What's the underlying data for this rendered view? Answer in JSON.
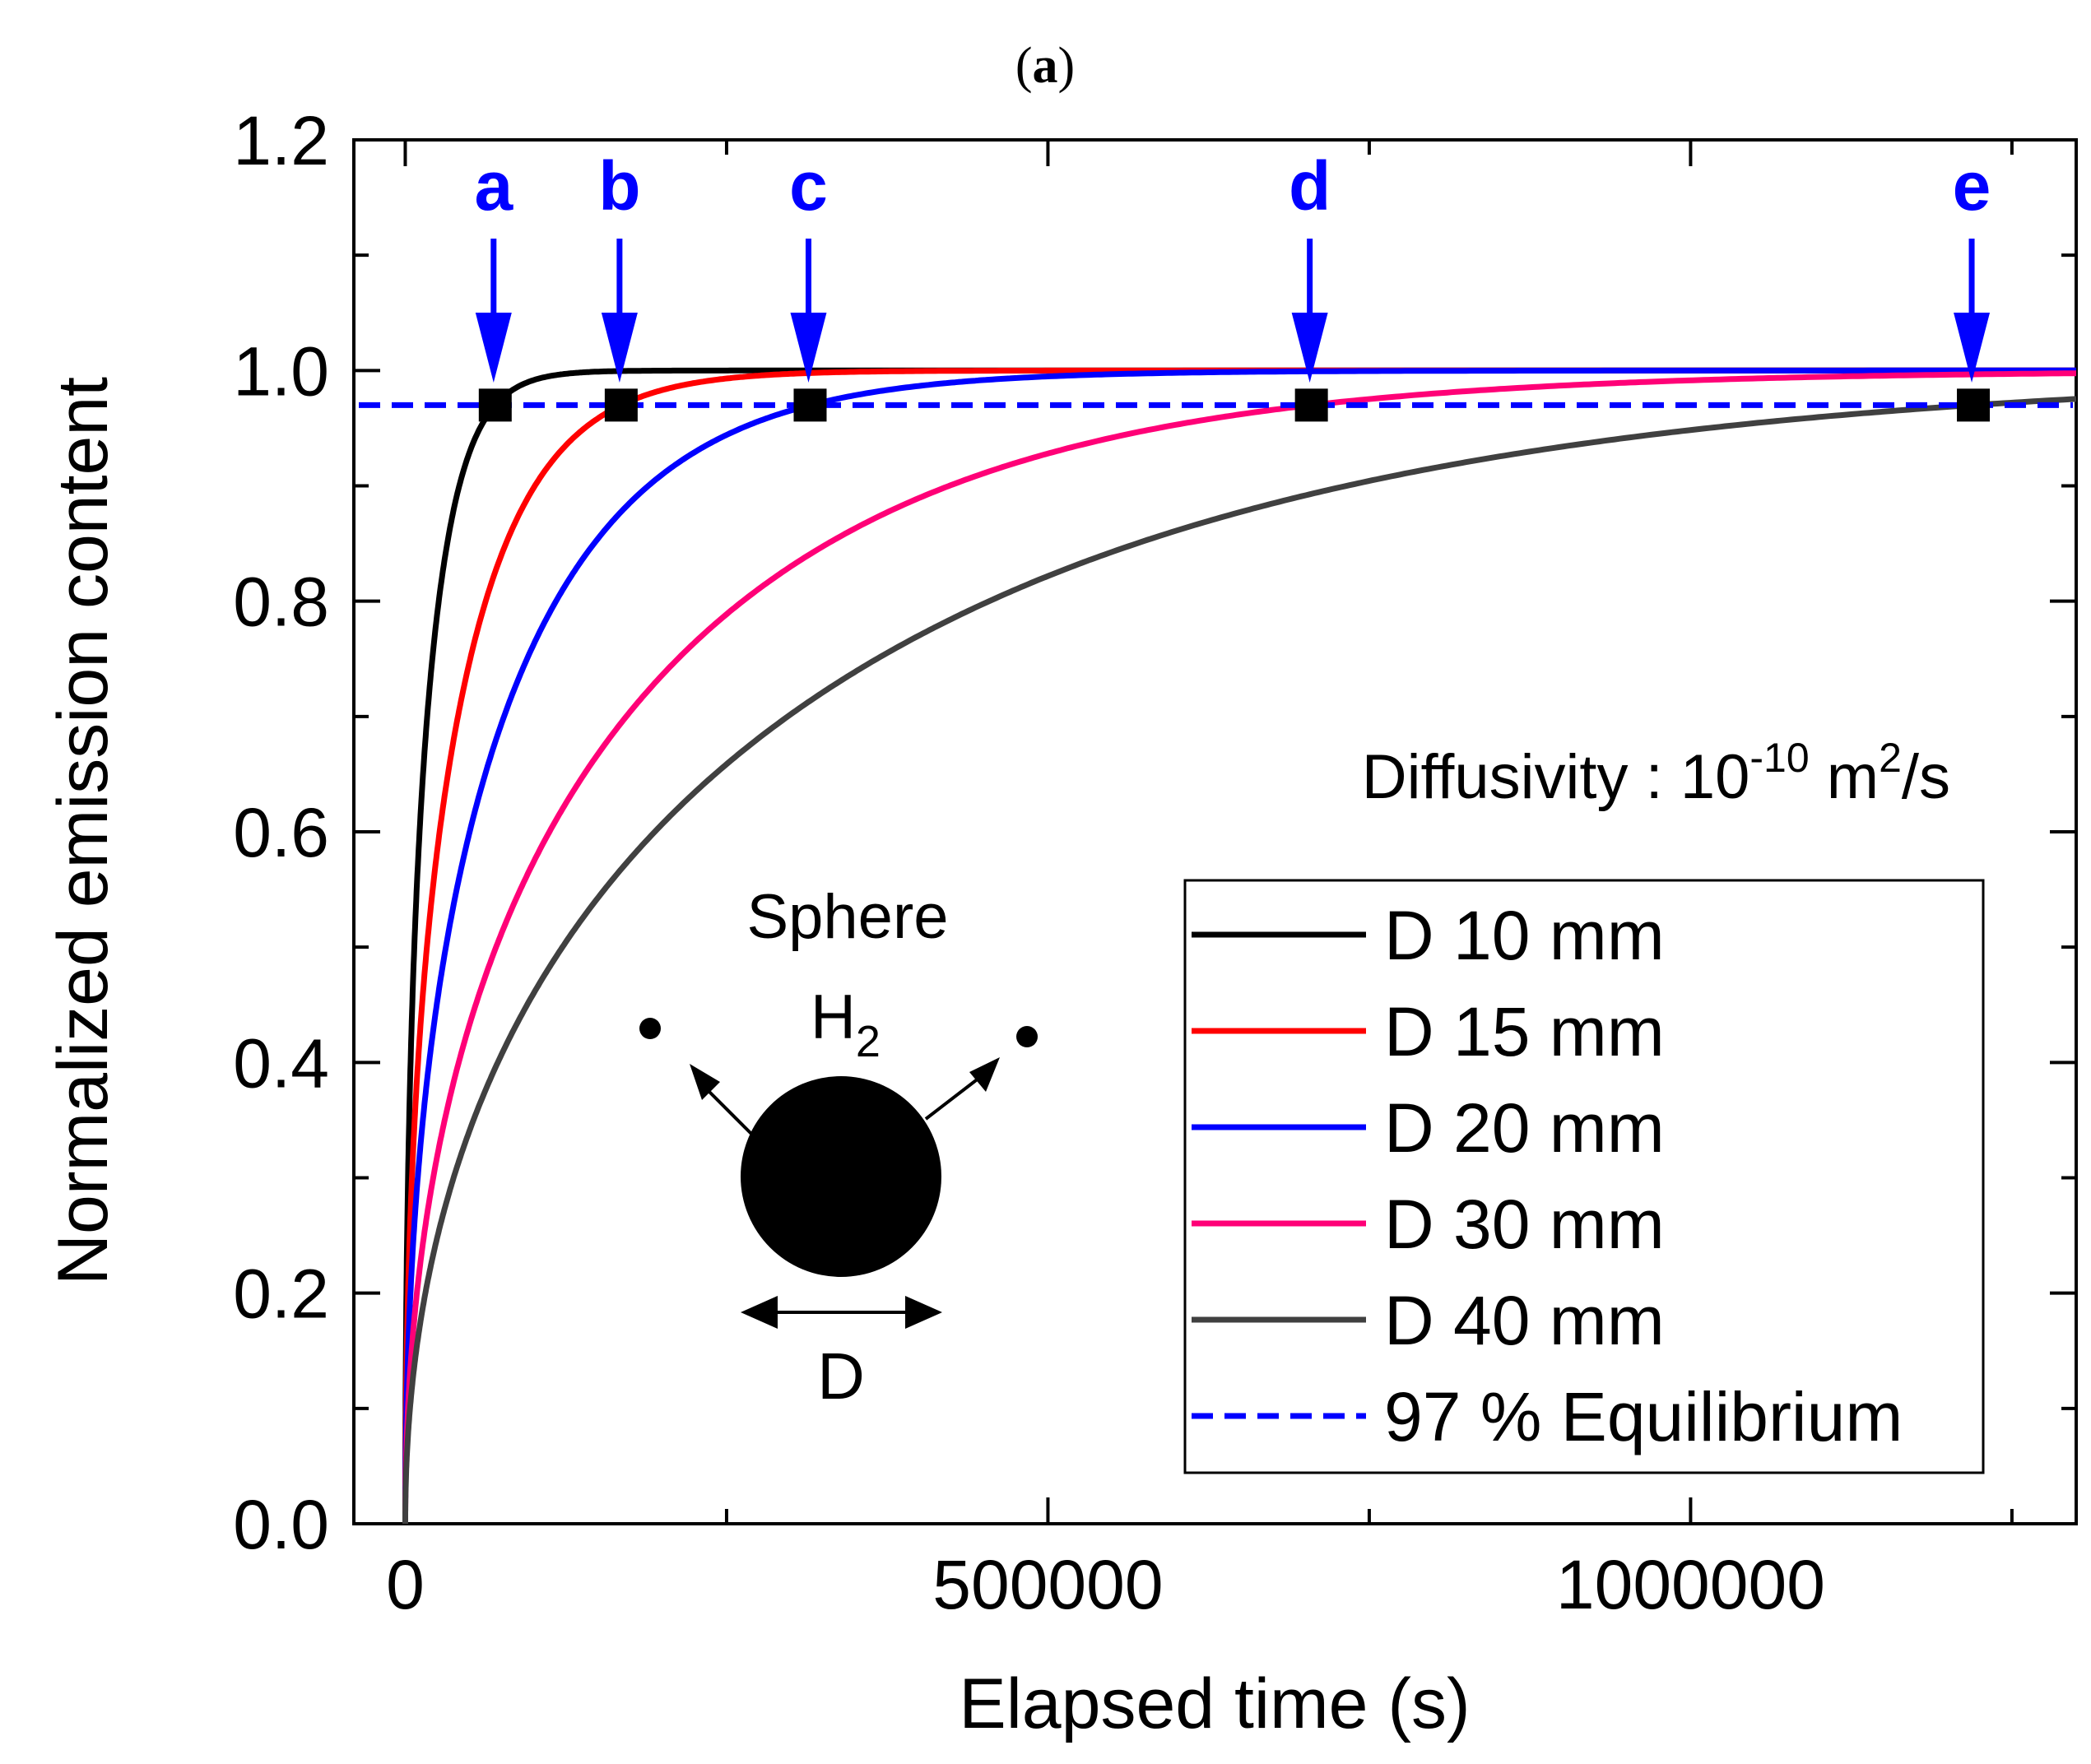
{
  "panel_label": {
    "prefix": "(",
    "letter": "a",
    "suffix": ")"
  },
  "annotations": {
    "diffusivity": {
      "text": "Diffusivity : 10",
      "exponent": "-10",
      "unit_pre": " m",
      "unit_exp": "2",
      "unit_post": "/s"
    },
    "shape_label": "Sphere",
    "gas_label": {
      "base": "H",
      "sub": "2"
    },
    "diameter_label": "D"
  },
  "chart_data": {
    "type": "line",
    "title": "",
    "xlabel": "Elapsed time (s)",
    "ylabel": "Normalized emission content",
    "xlim": [
      -40000,
      1300000
    ],
    "ylim": [
      0,
      1.2
    ],
    "x_ticks": [
      0,
      500000,
      1000000
    ],
    "x_tick_labels": [
      "0",
      "500000",
      "1000000"
    ],
    "x_minor_ticks": [
      250000,
      750000,
      1250000
    ],
    "y_ticks": [
      0,
      0.2,
      0.4,
      0.6,
      0.8,
      1.0,
      1.2
    ],
    "y_tick_labels": [
      "0.0",
      "0.2",
      "0.4",
      "0.6",
      "0.8",
      "1.0",
      "1.2"
    ],
    "y_minor_ticks": [
      0.1,
      0.3,
      0.5,
      0.7,
      0.9,
      1.1
    ],
    "diffusivity_m2_per_s": 1e-10,
    "series": [
      {
        "name": "D 10 mm",
        "diameter_mm": 10,
        "color": "#000000",
        "t97": 70000
      },
      {
        "name": "D 15 mm",
        "diameter_mm": 15,
        "color": "#ff0000",
        "t97": 168000
      },
      {
        "name": "D 20 mm",
        "diameter_mm": 20,
        "color": "#0000ff",
        "t97": 315000
      },
      {
        "name": "D 30 mm",
        "diameter_mm": 30,
        "color": "#ff0077",
        "t97": 705000
      },
      {
        "name": "D 40 mm",
        "diameter_mm": 40,
        "color": "#404040",
        "t97": 1220000
      }
    ],
    "equilibrium": {
      "name": "97 % Equilibrium",
      "value": 0.97,
      "color": "#0000ff"
    },
    "markers": [
      {
        "label": "a",
        "x": 70000,
        "y": 0.97
      },
      {
        "label": "b",
        "x": 168000,
        "y": 0.97
      },
      {
        "label": "c",
        "x": 315000,
        "y": 0.97
      },
      {
        "label": "d",
        "x": 705000,
        "y": 0.97
      },
      {
        "label": "e",
        "x": 1220000,
        "y": 0.97
      }
    ],
    "legend": {
      "position": "bottom-right"
    },
    "grid": false
  }
}
